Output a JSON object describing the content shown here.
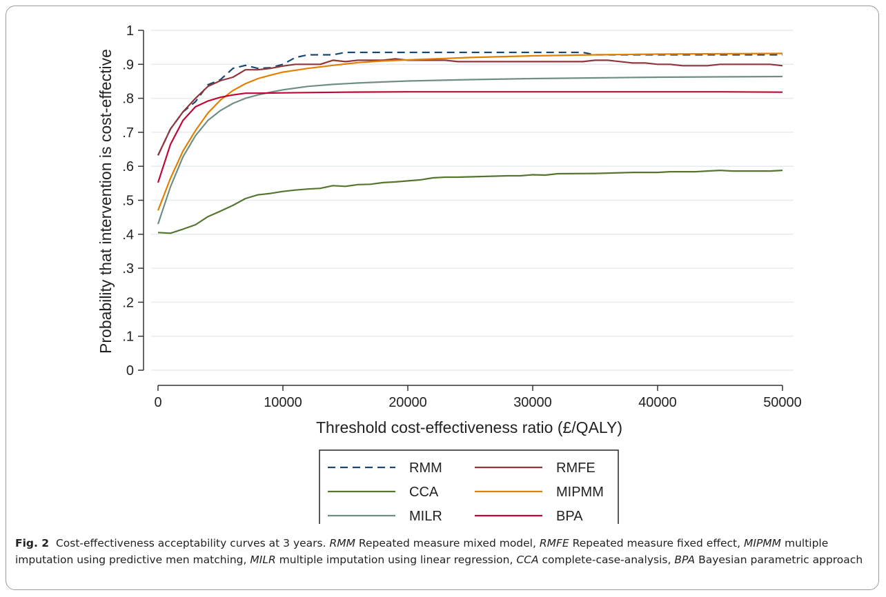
{
  "chart_data": {
    "type": "line",
    "xlabel": "Threshold cost-effectiveness ratio (£/QALY)",
    "ylabel": "Probability that intervention is cost-effective",
    "xlim": [
      0,
      50000
    ],
    "ylim": [
      0,
      1
    ],
    "xticks": [
      0,
      10000,
      20000,
      30000,
      40000,
      50000
    ],
    "xtick_labels": [
      "0",
      "10000",
      "20000",
      "30000",
      "40000",
      "50000"
    ],
    "yticks": [
      0,
      0.1,
      0.2,
      0.3,
      0.4,
      0.5,
      0.6,
      0.7,
      0.8,
      0.9,
      1
    ],
    "ytick_labels": [
      "0",
      ".1",
      ".2",
      ".3",
      ".4",
      ".5",
      ".6",
      ".7",
      ".8",
      ".9",
      "1"
    ],
    "grid": "horizontal",
    "legend_position": "bottom",
    "series": [
      {
        "name": "RMM",
        "color": "#1a476f",
        "dash": "dashed",
        "points": [
          [
            0,
            0.632
          ],
          [
            1000,
            0.71
          ],
          [
            2000,
            0.76
          ],
          [
            3000,
            0.79
          ],
          [
            4000,
            0.84
          ],
          [
            5000,
            0.855
          ],
          [
            6000,
            0.888
          ],
          [
            7000,
            0.897
          ],
          [
            8000,
            0.888
          ],
          [
            9000,
            0.89
          ],
          [
            10000,
            0.9
          ],
          [
            11000,
            0.92
          ],
          [
            12000,
            0.928
          ],
          [
            13000,
            0.928
          ],
          [
            14000,
            0.928
          ],
          [
            15000,
            0.935
          ],
          [
            20000,
            0.935
          ],
          [
            25000,
            0.935
          ],
          [
            30000,
            0.935
          ],
          [
            34000,
            0.935
          ],
          [
            35000,
            0.928
          ],
          [
            40000,
            0.928
          ],
          [
            45000,
            0.928
          ],
          [
            50000,
            0.928
          ]
        ]
      },
      {
        "name": "RMFE",
        "color": "#90353b",
        "dash": "solid",
        "points": [
          [
            0,
            0.632
          ],
          [
            1000,
            0.71
          ],
          [
            2000,
            0.76
          ],
          [
            3000,
            0.8
          ],
          [
            4000,
            0.835
          ],
          [
            5000,
            0.852
          ],
          [
            6000,
            0.862
          ],
          [
            7000,
            0.884
          ],
          [
            8000,
            0.884
          ],
          [
            9000,
            0.888
          ],
          [
            10000,
            0.895
          ],
          [
            11000,
            0.9
          ],
          [
            12000,
            0.9
          ],
          [
            13000,
            0.9
          ],
          [
            14000,
            0.912
          ],
          [
            15000,
            0.908
          ],
          [
            16000,
            0.912
          ],
          [
            17000,
            0.912
          ],
          [
            18000,
            0.912
          ],
          [
            19000,
            0.916
          ],
          [
            20000,
            0.912
          ],
          [
            22000,
            0.912
          ],
          [
            23000,
            0.912
          ],
          [
            24000,
            0.908
          ],
          [
            26000,
            0.908
          ],
          [
            30000,
            0.908
          ],
          [
            34000,
            0.908
          ],
          [
            35000,
            0.912
          ],
          [
            36000,
            0.912
          ],
          [
            38000,
            0.904
          ],
          [
            39000,
            0.904
          ],
          [
            40000,
            0.9
          ],
          [
            41000,
            0.9
          ],
          [
            42000,
            0.896
          ],
          [
            44000,
            0.896
          ],
          [
            45000,
            0.9
          ],
          [
            49000,
            0.9
          ],
          [
            50000,
            0.896
          ]
        ]
      },
      {
        "name": "CCA",
        "color": "#55752f",
        "dash": "solid",
        "points": [
          [
            0,
            0.405
          ],
          [
            1000,
            0.403
          ],
          [
            2000,
            0.415
          ],
          [
            3000,
            0.428
          ],
          [
            4000,
            0.452
          ],
          [
            5000,
            0.468
          ],
          [
            6000,
            0.485
          ],
          [
            7000,
            0.505
          ],
          [
            8000,
            0.516
          ],
          [
            9000,
            0.52
          ],
          [
            10000,
            0.526
          ],
          [
            11000,
            0.53
          ],
          [
            12000,
            0.533
          ],
          [
            13000,
            0.535
          ],
          [
            14000,
            0.543
          ],
          [
            15000,
            0.541
          ],
          [
            16000,
            0.546
          ],
          [
            17000,
            0.547
          ],
          [
            18000,
            0.552
          ],
          [
            19000,
            0.554
          ],
          [
            20000,
            0.557
          ],
          [
            21000,
            0.56
          ],
          [
            22000,
            0.566
          ],
          [
            23000,
            0.568
          ],
          [
            24000,
            0.568
          ],
          [
            26000,
            0.57
          ],
          [
            28000,
            0.572
          ],
          [
            29000,
            0.572
          ],
          [
            30000,
            0.575
          ],
          [
            31000,
            0.574
          ],
          [
            32000,
            0.578
          ],
          [
            35000,
            0.579
          ],
          [
            36000,
            0.58
          ],
          [
            38000,
            0.582
          ],
          [
            40000,
            0.582
          ],
          [
            41000,
            0.584
          ],
          [
            43000,
            0.584
          ],
          [
            45000,
            0.588
          ],
          [
            46000,
            0.586
          ],
          [
            49000,
            0.586
          ],
          [
            50000,
            0.588
          ]
        ]
      },
      {
        "name": "MIPMM",
        "color": "#e37e00",
        "dash": "solid",
        "points": [
          [
            0,
            0.47
          ],
          [
            1000,
            0.565
          ],
          [
            2000,
            0.645
          ],
          [
            3000,
            0.705
          ],
          [
            4000,
            0.757
          ],
          [
            5000,
            0.795
          ],
          [
            6000,
            0.823
          ],
          [
            7000,
            0.843
          ],
          [
            8000,
            0.858
          ],
          [
            9000,
            0.868
          ],
          [
            10000,
            0.877
          ],
          [
            12000,
            0.888
          ],
          [
            14000,
            0.897
          ],
          [
            16000,
            0.905
          ],
          [
            18000,
            0.91
          ],
          [
            20000,
            0.913
          ],
          [
            25000,
            0.92
          ],
          [
            30000,
            0.925
          ],
          [
            35000,
            0.928
          ],
          [
            40000,
            0.93
          ],
          [
            45000,
            0.931
          ],
          [
            50000,
            0.932
          ]
        ]
      },
      {
        "name": "MILR",
        "color": "#6e8e84",
        "dash": "solid",
        "points": [
          [
            0,
            0.43
          ],
          [
            1000,
            0.54
          ],
          [
            2000,
            0.628
          ],
          [
            3000,
            0.69
          ],
          [
            4000,
            0.735
          ],
          [
            5000,
            0.764
          ],
          [
            6000,
            0.785
          ],
          [
            7000,
            0.8
          ],
          [
            8000,
            0.81
          ],
          [
            9000,
            0.818
          ],
          [
            10000,
            0.825
          ],
          [
            12000,
            0.835
          ],
          [
            14000,
            0.841
          ],
          [
            16000,
            0.845
          ],
          [
            18000,
            0.848
          ],
          [
            20000,
            0.851
          ],
          [
            25000,
            0.855
          ],
          [
            30000,
            0.858
          ],
          [
            35000,
            0.86
          ],
          [
            40000,
            0.862
          ],
          [
            45000,
            0.863
          ],
          [
            50000,
            0.864
          ]
        ]
      },
      {
        "name": "BPA",
        "color": "#c10534",
        "dash": "solid",
        "points": [
          [
            0,
            0.552
          ],
          [
            1000,
            0.665
          ],
          [
            2000,
            0.735
          ],
          [
            3000,
            0.775
          ],
          [
            4000,
            0.792
          ],
          [
            5000,
            0.803
          ],
          [
            6000,
            0.81
          ],
          [
            7000,
            0.815
          ],
          [
            8000,
            0.815
          ],
          [
            10000,
            0.816
          ],
          [
            15000,
            0.818
          ],
          [
            20000,
            0.819
          ],
          [
            25000,
            0.819
          ],
          [
            30000,
            0.819
          ],
          [
            35000,
            0.819
          ],
          [
            40000,
            0.819
          ],
          [
            45000,
            0.819
          ],
          [
            50000,
            0.818
          ]
        ]
      }
    ]
  },
  "caption": {
    "label": "Fig. 2",
    "title": "Cost-effectiveness acceptability curves at 3 years.",
    "definitions": [
      {
        "abbr": "RMM",
        "text": "Repeated measure mixed model,"
      },
      {
        "abbr": "RMFE",
        "text": "Repeated measure fixed effect,"
      },
      {
        "abbr": "MIPMM",
        "text": "multiple imputation using predictive men matching,"
      },
      {
        "abbr": "MILR",
        "text": "multiple imputation using linear regression,"
      },
      {
        "abbr": "CCA",
        "text": "complete-case-analysis,"
      },
      {
        "abbr": "BPA",
        "text": "Bayesian parametric approach"
      }
    ]
  }
}
